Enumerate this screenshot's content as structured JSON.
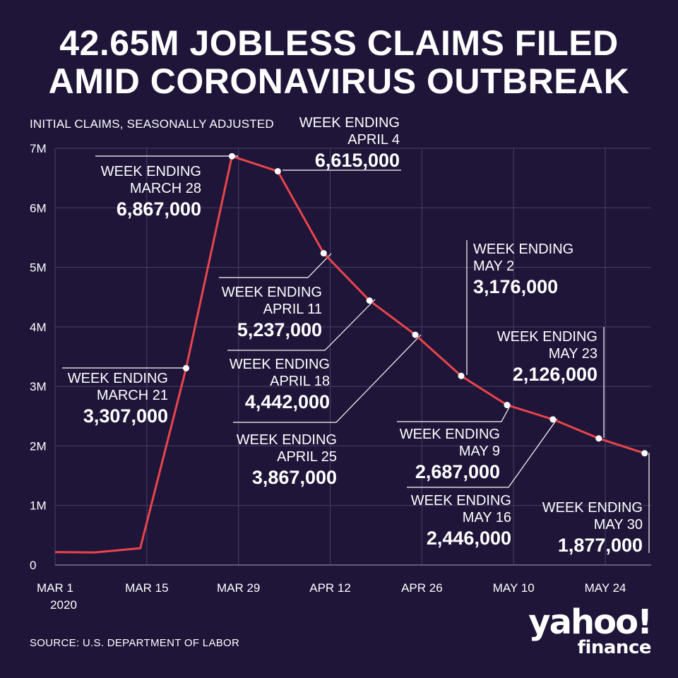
{
  "title": {
    "line1": "42.65M JOBLESS CLAIMS FILED",
    "line2": "AMID CORONAVIRUS OUTBREAK"
  },
  "subtitle": "INITIAL CLAIMS, SEASONALLY ADJUSTED",
  "source": "SOURCE:  U.S. DEPARTMENT OF LABOR",
  "logo": {
    "line1": "yahoo!",
    "line2": "finance"
  },
  "colors": {
    "background": "#1f1539",
    "line": "#e8454b",
    "grid": "#4a3f66",
    "text": "#ffffff"
  },
  "chart_data": {
    "type": "line",
    "x_tick_labels": [
      "MAR 1",
      "MAR 15",
      "MAR 29",
      "APR 12",
      "APR 26",
      "MAY 10",
      "MAY 24"
    ],
    "x_tick_sublabel": "2020",
    "y_tick_labels": [
      "0",
      "1M",
      "2M",
      "3M",
      "4M",
      "5M",
      "6M",
      "7M"
    ],
    "ylim": [
      0,
      7000000
    ],
    "xlim": [
      "2020-03-01",
      "2020-05-31"
    ],
    "grid": true,
    "series": [
      {
        "x": [
          "2020-03-01",
          "2020-03-07",
          "2020-03-14",
          "2020-03-21",
          "2020-03-28",
          "2020-04-04",
          "2020-04-11",
          "2020-04-18",
          "2020-04-25",
          "2020-05-02",
          "2020-05-09",
          "2020-05-16",
          "2020-05-23",
          "2020-05-30"
        ],
        "values": [
          217000,
          211000,
          282000,
          3307000,
          6867000,
          6615000,
          5237000,
          4442000,
          3867000,
          3176000,
          2687000,
          2446000,
          2126000,
          1877000
        ]
      }
    ],
    "annotations": [
      {
        "date": "2020-03-21",
        "lines": [
          "WEEK ENDING",
          "MARCH 21"
        ],
        "value_label": "3,307,000"
      },
      {
        "date": "2020-03-28",
        "lines": [
          "WEEK ENDING",
          "MARCH 28"
        ],
        "value_label": "6,867,000"
      },
      {
        "date": "2020-04-04",
        "lines": [
          "WEEK ENDING",
          "APRIL 4"
        ],
        "value_label": "6,615,000"
      },
      {
        "date": "2020-04-11",
        "lines": [
          "WEEK ENDING",
          "APRIL 11"
        ],
        "value_label": "5,237,000"
      },
      {
        "date": "2020-04-18",
        "lines": [
          "WEEK ENDING",
          "APRIL 18"
        ],
        "value_label": "4,442,000"
      },
      {
        "date": "2020-04-25",
        "lines": [
          "WEEK ENDING",
          "APRIL 25"
        ],
        "value_label": "3,867,000"
      },
      {
        "date": "2020-05-02",
        "lines": [
          "WEEK ENDING",
          "MAY 2"
        ],
        "value_label": "3,176,000"
      },
      {
        "date": "2020-05-09",
        "lines": [
          "WEEK ENDING",
          "MAY 9"
        ],
        "value_label": "2,687,000"
      },
      {
        "date": "2020-05-16",
        "lines": [
          "WEEK ENDING",
          "MAY 16"
        ],
        "value_label": "2,446,000"
      },
      {
        "date": "2020-05-23",
        "lines": [
          "WEEK ENDING",
          "MAY 23"
        ],
        "value_label": "2,126,000"
      },
      {
        "date": "2020-05-30",
        "lines": [
          "WEEK ENDING",
          "MAY 30"
        ],
        "value_label": "1,877,000"
      }
    ]
  }
}
